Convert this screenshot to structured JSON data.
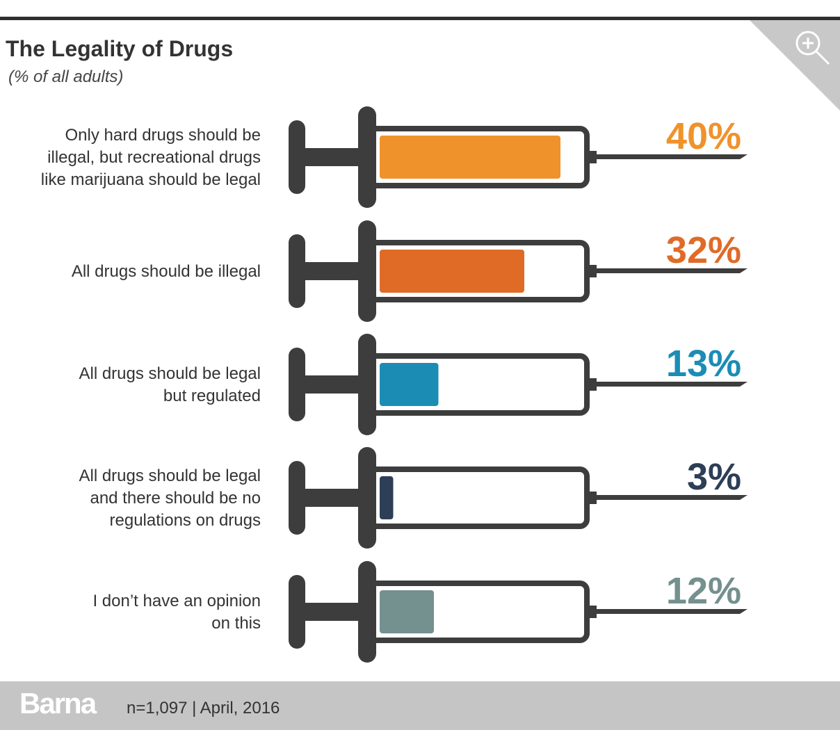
{
  "header": {
    "title": "The Legality of Drugs",
    "subtitle": "(% of all adults)"
  },
  "chart_data": {
    "type": "bar",
    "title": "The Legality of Drugs",
    "subtitle": "(% of all adults)",
    "categories": [
      "Only hard drugs should be illegal, but recreational drugs like marijuana should be legal",
      "All drugs should be illegal",
      "All drugs should be legal but regulated",
      "All drugs should be legal and there should be no regulations on drugs",
      "I don’t have an opinion on this"
    ],
    "category_lines": [
      [
        "Only hard drugs should be",
        "illegal, but recreational drugs",
        "like marijuana should be legal"
      ],
      [
        "All drugs should be illegal"
      ],
      [
        "All drugs should be legal",
        "but regulated"
      ],
      [
        "All drugs should be legal",
        "and there should be no",
        "regulations on drugs"
      ],
      [
        "I don’t have an opinion",
        "on this"
      ]
    ],
    "values": [
      40,
      32,
      13,
      3,
      12
    ],
    "value_labels": [
      "40%",
      "32%",
      "13%",
      "3%",
      "12%"
    ],
    "colors": [
      "#f0922b",
      "#e06b27",
      "#1b8db5",
      "#2d3e57",
      "#74908f"
    ],
    "ylim": [
      0,
      40
    ],
    "grid": false,
    "legend": "none"
  },
  "footer": {
    "brand": "Barna",
    "note": "n=1,097  |  April, 2016"
  },
  "icons": {
    "zoom": "zoom-in-icon"
  }
}
